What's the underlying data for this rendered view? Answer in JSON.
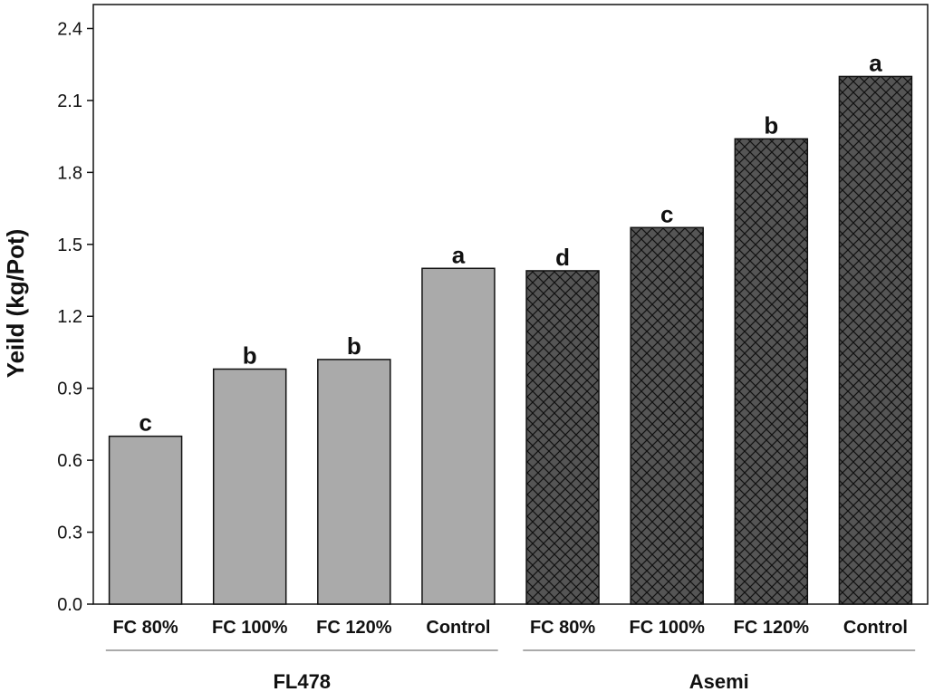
{
  "chart_data": {
    "type": "bar",
    "title": "",
    "ylabel": "Yeild (kg/Pot)",
    "xlabel": "",
    "ylim": [
      0,
      2.5
    ],
    "yticks": [
      "0.0",
      "0.3",
      "0.6",
      "0.9",
      "1.2",
      "1.5",
      "1.8",
      "2.1",
      "2.4"
    ],
    "grid": false,
    "groups": [
      {
        "name": "FL478",
        "fill": "#aaaaaa",
        "pattern": "solid",
        "categories": [
          "FC 80%",
          "FC 100%",
          "FC 120%",
          "Control"
        ],
        "values": [
          0.7,
          0.98,
          1.02,
          1.4
        ],
        "letters": [
          "c",
          "b",
          "b",
          "a"
        ]
      },
      {
        "name": "Asemi",
        "fill": "#555555",
        "pattern": "crosshatch",
        "categories": [
          "FC 80%",
          "FC 100%",
          "FC 120%",
          "Control"
        ],
        "values": [
          1.39,
          1.57,
          1.94,
          2.2
        ],
        "letters": [
          "d",
          "c",
          "b",
          "a"
        ]
      }
    ]
  }
}
